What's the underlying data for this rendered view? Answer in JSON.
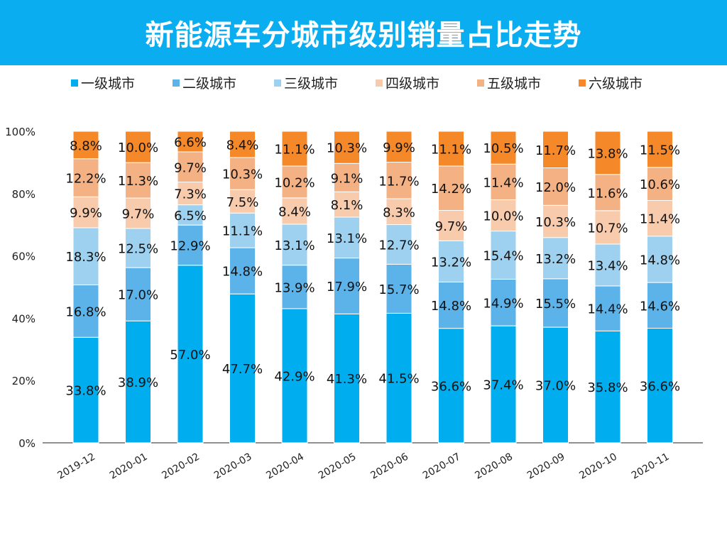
{
  "title": "新能源车分城市级别销量占比走势",
  "chart_data": {
    "type": "bar",
    "stacked": true,
    "title": "新能源车分城市级别销量占比走势",
    "xlabel": "",
    "ylabel": "",
    "ylim": [
      0,
      100
    ],
    "yticks": [
      "0%",
      "20%",
      "40%",
      "60%",
      "80%",
      "100%"
    ],
    "legend_position": "top",
    "categories": [
      "2019-12",
      "2020-01",
      "2020-02",
      "2020-03",
      "2020-04",
      "2020-05",
      "2020-06",
      "2020-07",
      "2020-08",
      "2020-09",
      "2020-10",
      "2020-11"
    ],
    "series": [
      {
        "name": "一级城市",
        "color": "#00aeef",
        "values": [
          33.8,
          38.9,
          57.0,
          47.7,
          42.9,
          41.3,
          41.5,
          36.6,
          37.4,
          37.0,
          35.8,
          36.6
        ]
      },
      {
        "name": "二级城市",
        "color": "#5cb3ea",
        "values": [
          16.8,
          17.0,
          12.9,
          14.8,
          13.9,
          17.9,
          15.7,
          14.8,
          14.9,
          15.5,
          14.4,
          14.6
        ]
      },
      {
        "name": "三级城市",
        "color": "#9dd1ef",
        "values": [
          18.3,
          12.5,
          6.5,
          11.1,
          13.1,
          13.1,
          12.7,
          13.2,
          15.4,
          13.2,
          13.4,
          14.8
        ]
      },
      {
        "name": "四级城市",
        "color": "#f8cbad",
        "values": [
          9.9,
          9.7,
          7.3,
          7.5,
          8.4,
          8.1,
          8.3,
          9.7,
          10.0,
          10.3,
          10.7,
          11.4
        ]
      },
      {
        "name": "五级城市",
        "color": "#f4b183",
        "values": [
          12.2,
          11.3,
          9.7,
          10.3,
          10.2,
          9.1,
          11.7,
          14.2,
          11.4,
          12.0,
          11.6,
          10.6
        ]
      },
      {
        "name": "六级城市",
        "color": "#f5892a",
        "values": [
          8.8,
          10.0,
          6.6,
          8.4,
          11.1,
          10.3,
          9.9,
          11.1,
          10.5,
          11.7,
          13.8,
          11.5
        ]
      }
    ]
  }
}
